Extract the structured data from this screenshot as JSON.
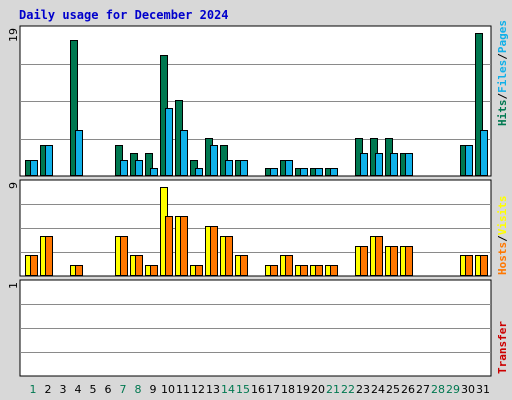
{
  "chart_data": {
    "type": "bar",
    "title": "Daily usage for December 2024",
    "colors": {
      "background": "#d8d8d8",
      "plot": "#ffffff",
      "title": "#0000cc",
      "hits": "#007850",
      "files": "#10b0e8",
      "pages": "#10b0e8",
      "hosts": "#ff7700",
      "visits": "#ffff00",
      "transfer": "#cc0000",
      "weekend_label": "#007850",
      "weekday_label": "#000000"
    },
    "days": [
      "1",
      "2",
      "3",
      "4",
      "5",
      "6",
      "7",
      "8",
      "9",
      "10",
      "11",
      "12",
      "13",
      "14",
      "15",
      "16",
      "17",
      "18",
      "19",
      "20",
      "21",
      "22",
      "23",
      "24",
      "25",
      "26",
      "27",
      "28",
      "29",
      "30",
      "31"
    ],
    "weekend_days": [
      "1",
      "7",
      "8",
      "14",
      "15",
      "21",
      "22",
      "28",
      "29"
    ],
    "side_labels": {
      "hits_files_pages": [
        "Hits",
        "/",
        "Files",
        "/",
        "Pages"
      ],
      "hosts_visits": [
        "Hosts",
        "/",
        "Visits"
      ],
      "transfer": "Transfer"
    },
    "panels": [
      {
        "name": "hits_files",
        "ymax_label": "19",
        "ymax": 19,
        "series": [
          {
            "key": "hits",
            "values": [
              2,
              4,
              0,
              18,
              0,
              0,
              4,
              3,
              3,
              16,
              10,
              2,
              5,
              4,
              2,
              0,
              1,
              2,
              1,
              1,
              1,
              0,
              5,
              5,
              5,
              3,
              0,
              0,
              0,
              4,
              19
            ]
          },
          {
            "key": "files",
            "values": [
              2,
              4,
              0,
              6,
              0,
              0,
              2,
              2,
              1,
              9,
              6,
              1,
              4,
              2,
              2,
              0,
              1,
              2,
              1,
              1,
              1,
              0,
              3,
              3,
              3,
              3,
              0,
              0,
              0,
              4,
              6
            ]
          }
        ]
      },
      {
        "name": "visits_hosts",
        "ymax_label": "9",
        "ymax": 9,
        "series": [
          {
            "key": "visits",
            "values": [
              2,
              4,
              0,
              1,
              0,
              0,
              4,
              2,
              1,
              9,
              6,
              1,
              5,
              4,
              2,
              0,
              1,
              2,
              1,
              1,
              1,
              0,
              3,
              4,
              3,
              3,
              0,
              0,
              0,
              2,
              2
            ]
          },
          {
            "key": "hosts",
            "values": [
              2,
              4,
              0,
              1,
              0,
              0,
              4,
              2,
              1,
              6,
              6,
              1,
              5,
              4,
              2,
              0,
              1,
              2,
              1,
              1,
              1,
              0,
              3,
              4,
              3,
              3,
              0,
              0,
              0,
              2,
              2
            ]
          }
        ]
      },
      {
        "name": "transfer",
        "ymax_label": "1",
        "ymax": 1,
        "series": []
      }
    ]
  }
}
